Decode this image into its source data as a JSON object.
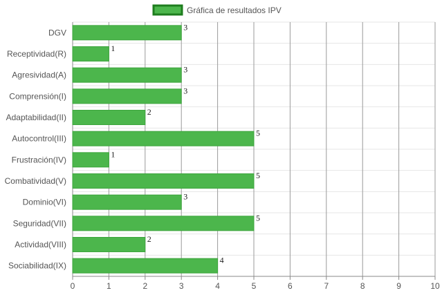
{
  "chart_data": {
    "type": "bar",
    "orientation": "horizontal",
    "categories": [
      "DGV",
      "Receptividad(R)",
      "Agresividad(A)",
      "Comprensión(I)",
      "Adaptabilidad(II)",
      "Autocontrol(III)",
      "Frustración(IV)",
      "Combatividad(V)",
      "Dominio(VI)",
      "Seguridad(VII)",
      "Actividad(VIII)",
      "Sociabilidad(IX)"
    ],
    "series": [
      {
        "name": "Gráfica de resultados IPV",
        "values": [
          3,
          1,
          3,
          3,
          2,
          5,
          1,
          5,
          3,
          5,
          2,
          4
        ]
      }
    ],
    "xlim": [
      0,
      10
    ],
    "x_ticks": [
      "0",
      "1",
      "2",
      "3",
      "4",
      "5",
      "6",
      "7",
      "8",
      "9",
      "10"
    ],
    "grid": true,
    "legend_position": "top-center",
    "colors": {
      "bar_fill": "#4cb64c",
      "bar_border": "#3da53d",
      "legend_border": "#1e7d1e",
      "grid": "#e6e6e6",
      "grid_major": "#9a9a9a"
    }
  }
}
